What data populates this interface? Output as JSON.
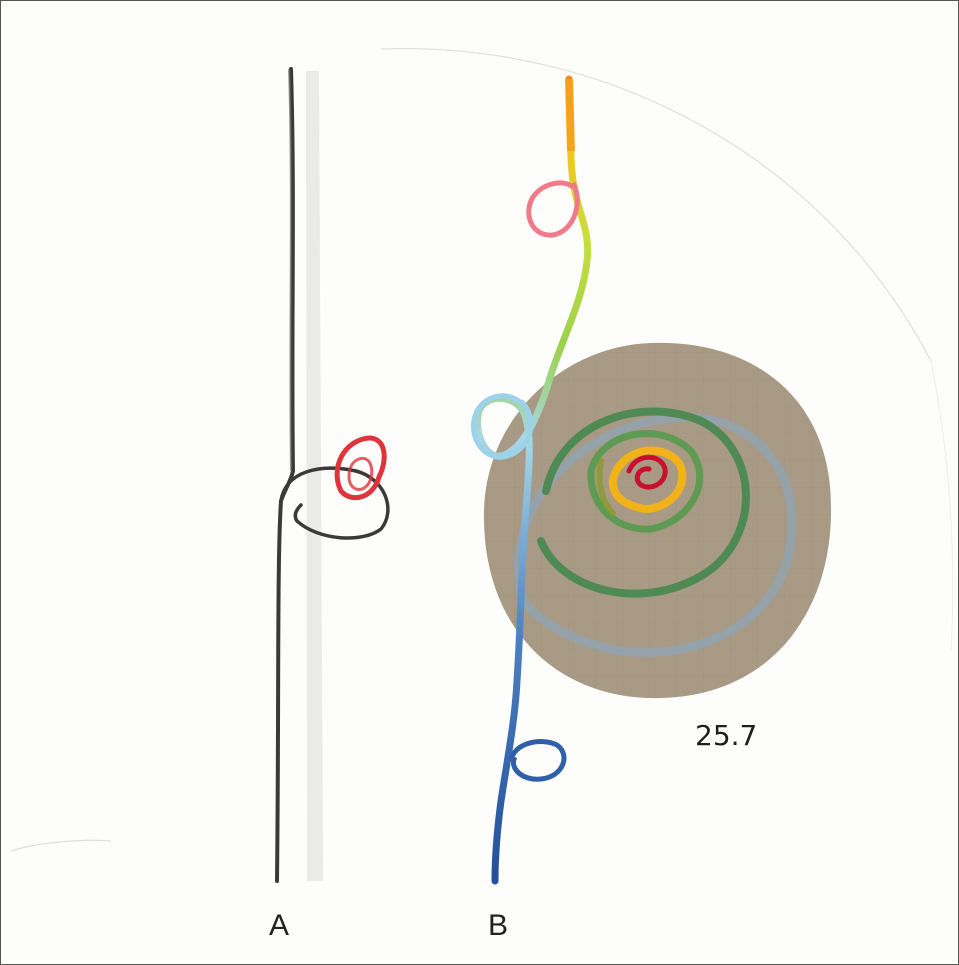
{
  "labels": {
    "a": "A",
    "b": "B"
  },
  "annotation": "25.7",
  "colors": {
    "pencil": "#3a3a3a",
    "red_loop": "#e0343c",
    "disc": "#a89a84",
    "grid": "#8b8273",
    "yellow": "#f2b21a",
    "green": "#9bd34a",
    "dark_green": "#4f8a55",
    "light_blue": "#9cd3ea",
    "blue": "#2f5fa8"
  }
}
